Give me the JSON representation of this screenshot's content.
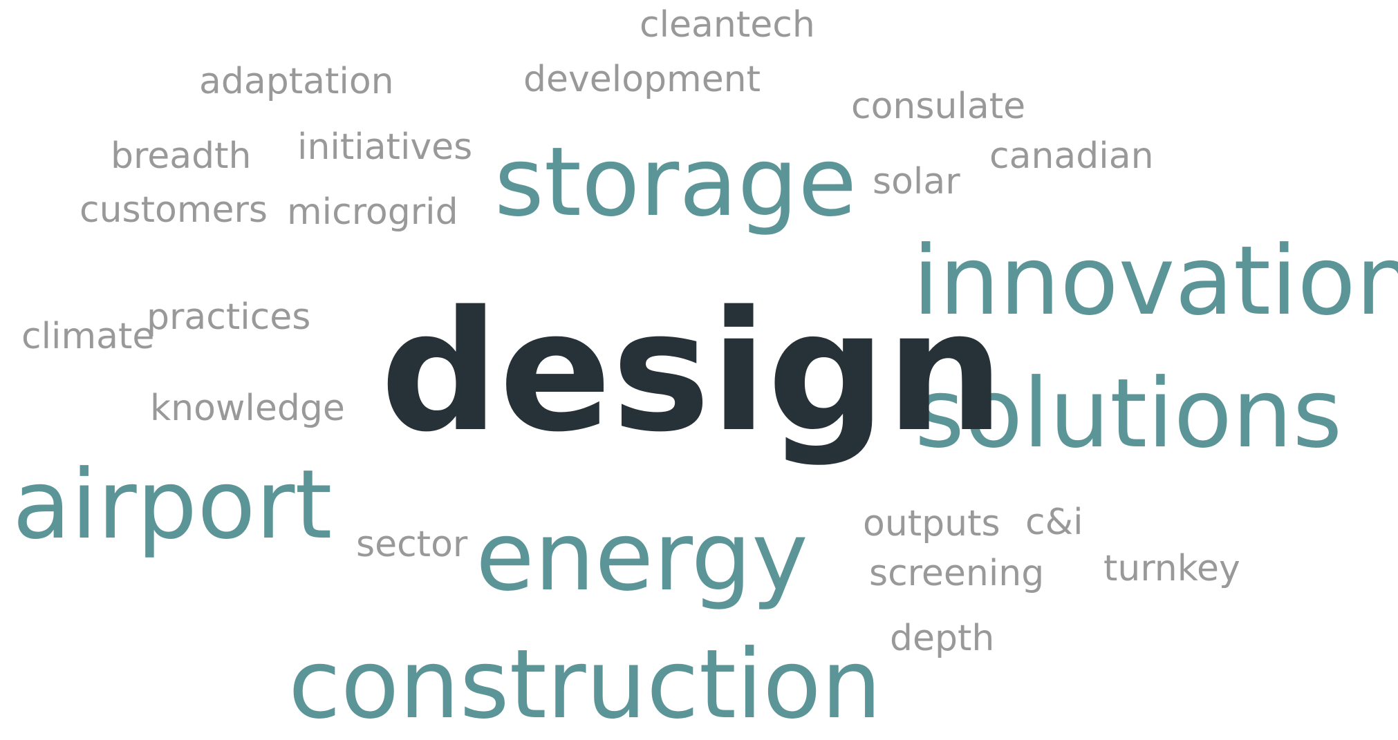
{
  "words": {
    "design": "design",
    "storage": "storage",
    "innovation": "innovation",
    "solutions": "solutions",
    "airport": "airport",
    "energy": "energy",
    "construction": "construction",
    "cleantech": "cleantech",
    "adaptation": "adaptation",
    "development": "development",
    "consulate": "consulate",
    "breadth": "breadth",
    "initiatives": "initiatives",
    "canadian": "canadian",
    "solar": "solar",
    "customers": "customers",
    "microgrid": "microgrid",
    "practices": "practices",
    "climate": "climate",
    "knowledge": "knowledge",
    "sector": "sector",
    "outputs": "outputs",
    "cni": "c&i",
    "screening": "screening",
    "turnkey": "turnkey",
    "depth": "depth"
  },
  "colors": {
    "primary_word": "#263238",
    "major_words": "#5b9597",
    "minor_words": "#999999",
    "background": "#ffffff"
  }
}
